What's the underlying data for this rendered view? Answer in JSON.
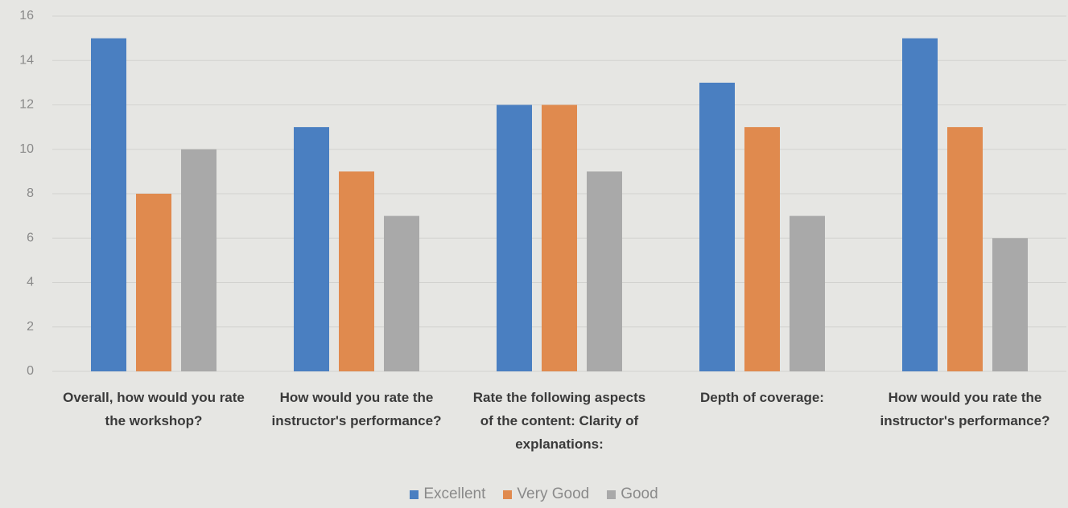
{
  "chart_data": {
    "type": "bar",
    "categories": [
      "Overall, how would you rate the workshop?",
      "How would you rate the instructor's performance?",
      "Rate the following aspects of the content: Clarity of explanations:",
      "Depth of coverage:",
      "How would you rate the instructor's performance?"
    ],
    "series": [
      {
        "name": "Excellent",
        "color": "#4a7fc1",
        "values": [
          15,
          11,
          12,
          13,
          15
        ]
      },
      {
        "name": "Very Good",
        "color": "#e08a4e",
        "values": [
          8,
          9,
          12,
          11,
          11
        ]
      },
      {
        "name": "Good",
        "color": "#a9a9a9",
        "values": [
          10,
          7,
          9,
          7,
          6
        ]
      }
    ],
    "ylim": [
      0,
      16
    ],
    "yticks": [
      0,
      2,
      4,
      6,
      8,
      10,
      12,
      14,
      16
    ],
    "grid": true,
    "legend": "bottom"
  }
}
